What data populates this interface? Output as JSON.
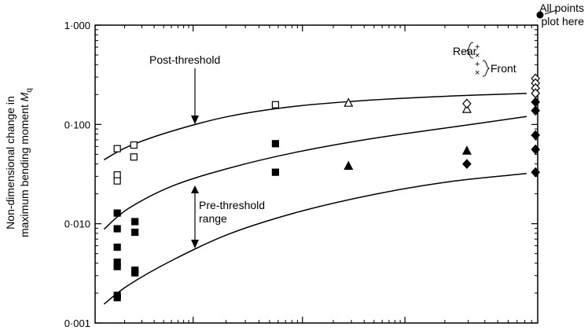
{
  "chart_data": {
    "type": "scatter",
    "y_scale": "log",
    "ylim": [
      0.001,
      1.0
    ],
    "xlim": [
      0,
      4
    ],
    "y_ticks": [
      {
        "value": 1.0,
        "label": "1·000"
      },
      {
        "value": 0.1,
        "label": "0·100"
      },
      {
        "value": 0.01,
        "label": "0·010"
      },
      {
        "value": 0.001,
        "label": "0·001"
      }
    ],
    "x_major_ticks": [
      0.886,
      1.874,
      2.8
    ],
    "ylabel_line1": "Non-dimensional change in",
    "ylabel_line2": "maximum bending moment ",
    "ylabel_symbol": "M",
    "ylabel_subscript": "q",
    "curves": [
      {
        "points": [
          [
            0.08,
            0.044
          ],
          [
            0.3,
            0.06
          ],
          [
            0.7,
            0.086
          ],
          [
            1.2,
            0.12
          ],
          [
            1.8,
            0.152
          ],
          [
            2.5,
            0.176
          ],
          [
            3.2,
            0.193
          ],
          [
            3.9,
            0.205
          ]
        ]
      },
      {
        "points": [
          [
            0.08,
            0.0088
          ],
          [
            0.3,
            0.0142
          ],
          [
            0.7,
            0.024
          ],
          [
            1.2,
            0.036
          ],
          [
            1.8,
            0.052
          ],
          [
            2.5,
            0.072
          ],
          [
            3.2,
            0.093
          ],
          [
            3.9,
            0.12
          ]
        ]
      },
      {
        "points": [
          [
            0.08,
            0.00155
          ],
          [
            0.3,
            0.0024
          ],
          [
            0.7,
            0.0043
          ],
          [
            1.2,
            0.0078
          ],
          [
            1.8,
            0.0128
          ],
          [
            2.5,
            0.0195
          ],
          [
            3.2,
            0.0265
          ],
          [
            3.9,
            0.032
          ]
        ]
      }
    ],
    "series": [
      {
        "marker": "open-square",
        "points": [
          [
            0.2,
            0.057
          ],
          [
            0.35,
            0.062
          ],
          [
            0.35,
            0.047
          ],
          [
            0.2,
            0.031
          ],
          [
            0.2,
            0.027
          ],
          [
            1.63,
            0.158
          ]
        ]
      },
      {
        "marker": "filled-square",
        "points": [
          [
            0.2,
            0.0128
          ],
          [
            0.2,
            0.0089
          ],
          [
            0.36,
            0.0105
          ],
          [
            0.36,
            0.0082
          ],
          [
            0.2,
            0.0058
          ],
          [
            0.2,
            0.0041
          ],
          [
            0.2,
            0.0037
          ],
          [
            0.36,
            0.0034
          ],
          [
            0.36,
            0.0032
          ],
          [
            0.2,
            0.0019
          ],
          [
            0.2,
            0.0018
          ],
          [
            1.63,
            0.064
          ],
          [
            1.63,
            0.033
          ]
        ]
      },
      {
        "marker": "open-triangle",
        "points": [
          [
            2.29,
            0.164
          ],
          [
            3.36,
            0.142
          ]
        ]
      },
      {
        "marker": "filled-triangle",
        "points": [
          [
            2.29,
            0.038
          ],
          [
            3.36,
            0.054
          ]
        ]
      },
      {
        "marker": "open-diamond",
        "points": [
          [
            3.36,
            0.162
          ],
          [
            3.98,
            0.29
          ],
          [
            3.98,
            0.26
          ],
          [
            3.98,
            0.232
          ],
          [
            3.98,
            0.206
          ]
        ]
      },
      {
        "marker": "filled-diamond",
        "points": [
          [
            3.98,
            0.168
          ],
          [
            3.98,
            0.138
          ],
          [
            3.98,
            0.078
          ],
          [
            3.98,
            0.056
          ],
          [
            3.98,
            0.033
          ],
          [
            3.36,
            0.04
          ]
        ]
      }
    ],
    "annotations": {
      "post_threshold": "Post-threshold",
      "pre_threshold_line1": "Pre-threshold",
      "pre_threshold_line2": "range",
      "rear": "Rear",
      "front": "Front",
      "all_points_line1": "All points",
      "all_points_line2": "plot here"
    }
  }
}
